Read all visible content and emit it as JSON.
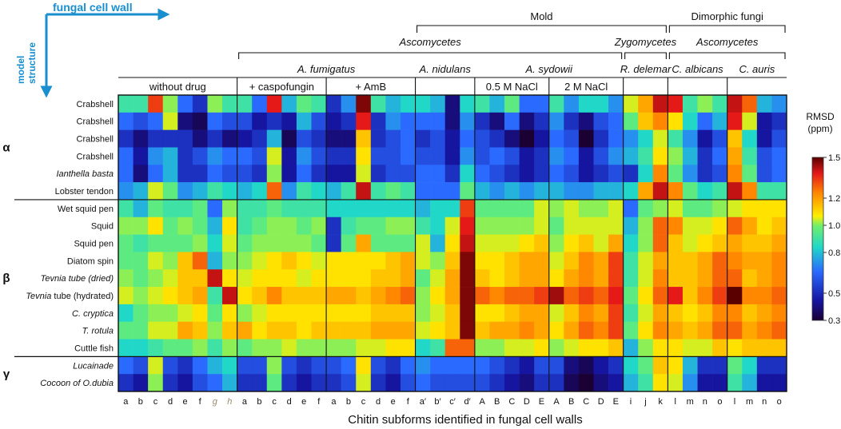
{
  "chart_data": {
    "type": "heatmap",
    "axis_title_x": "fungal cell wall",
    "axis_title_y": [
      "model",
      "structure"
    ],
    "xlabel": "Chitin subforms identified in fungal cell walls",
    "colorbar": {
      "title": "RMSD",
      "unit": "(ppm)",
      "min": 0.3,
      "max": 1.5,
      "ticks": [
        "1.5",
        "1.2",
        "1.0",
        "0.8",
        "0.5",
        "0.3"
      ]
    },
    "header_level1": [
      {
        "text": "Mold",
        "italic": false,
        "start": 0,
        "end": 45
      },
      {
        "text": "Dimorphic fungi",
        "italic": false,
        "start": 46,
        "end": 53
      }
    ],
    "header_level2": [
      {
        "text": "Ascomycetes",
        "italic": true,
        "start": 0,
        "end": 42
      },
      {
        "text": "Zygomycetes",
        "italic": true,
        "start": 43,
        "end": 45
      },
      {
        "text": "Ascomycetes",
        "italic": true,
        "start": 46,
        "end": 53
      }
    ],
    "header_level3": [
      {
        "text": "A. fumigatus",
        "italic": true,
        "start": 0,
        "end": 23
      },
      {
        "text": "A. nidulans",
        "italic": true,
        "start": 24,
        "end": 27
      },
      {
        "text": "A. sydowii",
        "italic": true,
        "start": 28,
        "end": 37
      },
      {
        "text": "R. delemar",
        "italic": true,
        "start": 43,
        "end": 45
      },
      {
        "text": "C. albicans",
        "italic": true,
        "start": 46,
        "end": 49
      },
      {
        "text": "C. auris",
        "italic": true,
        "start": 50,
        "end": 53
      }
    ],
    "conditions": [
      {
        "text": "without drug",
        "start": 0,
        "end": 7
      },
      {
        "text": "+ caspofungin",
        "start": 8,
        "end": 13
      },
      {
        "text": "+ AmB",
        "start": 14,
        "end": 19
      },
      {
        "text": "0.5 M NaCl",
        "start": 24,
        "end": 28
      },
      {
        "text": "2 M NaCl",
        "start": 29,
        "end": 33
      }
    ],
    "column_groups": [
      [
        0,
        7
      ],
      [
        8,
        13
      ],
      [
        14,
        19
      ],
      [
        20,
        23
      ],
      [
        24,
        28
      ],
      [
        29,
        33
      ],
      [
        34,
        36
      ],
      [
        37,
        40
      ],
      [
        41,
        44
      ]
    ],
    "columns": [
      "a",
      "b",
      "c",
      "d",
      "e",
      "f",
      "g",
      "h",
      "a",
      "b",
      "c",
      "d",
      "e",
      "f",
      "a",
      "b",
      "c",
      "d",
      "e",
      "f",
      "a′",
      "b′",
      "c′",
      "d′",
      "A",
      "B",
      "C",
      "D",
      "E",
      "A",
      "B",
      "C",
      "D",
      "E",
      "i",
      "j",
      "k",
      "l",
      "m",
      "n",
      "o",
      "l",
      "m",
      "n",
      "o"
    ],
    "column_label_colors": {
      "6": "#9a8a6a",
      "7": "#9a8a6a"
    },
    "classes": [
      {
        "symbol": "α",
        "start": 0,
        "end": 5
      },
      {
        "symbol": "β",
        "start": 6,
        "end": 14
      },
      {
        "symbol": "γ",
        "start": 15,
        "end": 16
      }
    ],
    "rows": [
      {
        "label": "Crabshell",
        "italic": "none"
      },
      {
        "label": "Crabshell",
        "italic": "none"
      },
      {
        "label": "Crabshell",
        "italic": "none"
      },
      {
        "label": "Crabshell",
        "italic": "none"
      },
      {
        "label": "Ianthella basta",
        "italic": "all"
      },
      {
        "label": "Lobster tendon",
        "italic": "none"
      },
      {
        "label": "Wet squid pen",
        "italic": "none"
      },
      {
        "label": "Squid",
        "italic": "none"
      },
      {
        "label": "Squid pen",
        "italic": "none"
      },
      {
        "label": "Diatom spin",
        "italic": "none"
      },
      {
        "label": "Tevnia tube (dried)",
        "italic": "all"
      },
      {
        "label": "Tevnia tube (hydrated)",
        "italic": "first"
      },
      {
        "label": "C. cryptica",
        "italic": "all"
      },
      {
        "label": "T. rotula",
        "italic": "all"
      },
      {
        "label": "Cuttle fish",
        "italic": "none"
      },
      {
        "label": "Lucainade",
        "italic": "all"
      },
      {
        "label": "Cocoon of O.dubia",
        "italic": "all"
      }
    ],
    "values": [
      [
        0.8,
        0.8,
        1.25,
        0.9,
        0.6,
        0.5,
        0.9,
        0.8,
        0.8,
        0.6,
        1.3,
        0.7,
        0.85,
        0.8,
        0.5,
        0.65,
        1.45,
        0.8,
        0.7,
        0.75,
        0.75,
        0.7,
        0.4,
        0.75,
        0.8,
        0.7,
        0.85,
        0.6,
        0.6,
        0.8,
        0.65,
        0.75,
        0.75,
        0.65,
        0.95,
        1.1,
        1.35,
        1.3,
        0.8,
        0.9,
        0.8,
        1.35,
        1.2,
        0.7,
        0.65
      ],
      [
        0.6,
        0.55,
        0.6,
        0.95,
        0.4,
        0.35,
        0.6,
        0.55,
        0.55,
        0.45,
        0.5,
        0.45,
        0.7,
        0.55,
        0.45,
        0.5,
        1.3,
        0.5,
        0.65,
        0.6,
        0.6,
        0.6,
        0.4,
        0.65,
        0.5,
        0.4,
        0.6,
        0.4,
        0.5,
        0.65,
        0.5,
        0.4,
        0.55,
        0.6,
        0.85,
        1.05,
        1.15,
        1.0,
        0.75,
        0.6,
        0.7,
        1.3,
        0.95,
        0.45,
        0.5
      ],
      [
        0.5,
        0.4,
        0.5,
        0.5,
        0.5,
        0.4,
        0.5,
        0.4,
        0.45,
        0.5,
        0.7,
        0.35,
        0.55,
        0.5,
        0.4,
        0.4,
        1.05,
        0.5,
        0.55,
        0.6,
        0.5,
        0.55,
        0.45,
        0.6,
        0.55,
        0.5,
        0.4,
        0.3,
        0.45,
        0.6,
        0.55,
        0.3,
        0.5,
        0.6,
        0.65,
        0.75,
        0.95,
        0.8,
        0.65,
        0.45,
        0.55,
        1.05,
        0.75,
        0.45,
        0.55
      ],
      [
        0.6,
        0.45,
        0.65,
        0.7,
        0.5,
        0.55,
        0.65,
        0.6,
        0.6,
        0.55,
        0.95,
        0.45,
        0.65,
        0.55,
        0.5,
        0.5,
        1.0,
        0.55,
        0.55,
        0.6,
        0.55,
        0.55,
        0.45,
        0.65,
        0.55,
        0.6,
        0.55,
        0.45,
        0.5,
        0.65,
        0.6,
        0.45,
        0.55,
        0.65,
        0.7,
        0.8,
        1.0,
        0.9,
        0.7,
        0.5,
        0.6,
        1.1,
        0.8,
        0.55,
        0.6
      ],
      [
        0.6,
        0.4,
        0.6,
        0.7,
        0.5,
        0.5,
        0.6,
        0.55,
        0.55,
        0.5,
        0.9,
        0.45,
        0.6,
        0.5,
        0.45,
        0.45,
        0.95,
        0.5,
        0.55,
        0.55,
        0.6,
        0.6,
        0.5,
        0.75,
        0.6,
        0.55,
        0.5,
        0.45,
        0.5,
        0.6,
        0.55,
        0.45,
        0.5,
        0.55,
        0.5,
        0.75,
        1.15,
        0.85,
        0.65,
        0.5,
        0.55,
        1.15,
        0.85,
        0.55,
        0.6
      ],
      [
        0.65,
        0.7,
        0.95,
        0.85,
        0.65,
        0.7,
        0.8,
        0.75,
        0.7,
        0.75,
        1.2,
        0.65,
        0.8,
        0.75,
        0.7,
        0.8,
        1.35,
        0.8,
        0.85,
        0.8,
        0.6,
        0.6,
        0.6,
        0.85,
        0.7,
        0.65,
        0.7,
        0.65,
        0.7,
        0.7,
        0.65,
        0.65,
        0.7,
        0.7,
        0.75,
        1.1,
        1.35,
        1.15,
        0.85,
        0.75,
        0.8,
        1.35,
        1.15,
        0.8,
        0.8
      ],
      [
        0.8,
        0.7,
        0.85,
        0.8,
        0.8,
        0.85,
        0.6,
        0.9,
        0.8,
        0.8,
        0.85,
        0.8,
        0.8,
        0.8,
        0.75,
        0.75,
        0.75,
        0.75,
        0.75,
        0.75,
        0.7,
        0.75,
        0.75,
        1.25,
        0.85,
        0.85,
        0.85,
        0.85,
        0.95,
        0.9,
        0.95,
        0.9,
        0.9,
        0.95,
        0.6,
        0.85,
        0.9,
        0.95,
        0.85,
        0.85,
        0.9,
        0.95,
        1.0,
        1.0,
        1.0
      ],
      [
        0.9,
        0.9,
        1.0,
        0.85,
        0.9,
        0.85,
        0.7,
        1.0,
        0.8,
        0.85,
        0.9,
        0.9,
        0.85,
        0.9,
        0.5,
        0.8,
        0.85,
        0.85,
        0.9,
        0.9,
        0.8,
        0.75,
        0.95,
        1.3,
        0.9,
        0.9,
        0.9,
        0.9,
        0.95,
        0.85,
        0.95,
        0.95,
        0.95,
        0.95,
        0.7,
        0.9,
        1.2,
        1.15,
        0.95,
        0.95,
        1.0,
        1.2,
        1.1,
        1.0,
        1.05
      ],
      [
        0.85,
        0.8,
        0.85,
        0.85,
        0.85,
        0.9,
        0.75,
        0.95,
        0.85,
        0.9,
        0.9,
        0.9,
        0.9,
        0.85,
        0.5,
        0.85,
        1.1,
        0.85,
        0.85,
        0.85,
        0.95,
        0.7,
        1.0,
        1.35,
        0.95,
        0.95,
        0.95,
        1.0,
        1.05,
        0.9,
        1.0,
        1.05,
        0.95,
        1.1,
        0.75,
        0.9,
        1.2,
        1.05,
        0.95,
        1.0,
        1.05,
        1.1,
        1.05,
        1.05,
        1.1
      ],
      [
        0.85,
        0.85,
        0.95,
        0.9,
        1.05,
        1.2,
        0.7,
        0.9,
        0.9,
        0.95,
        1.0,
        1.05,
        1.0,
        0.95,
        1.0,
        1.0,
        1.0,
        1.0,
        1.05,
        1.1,
        0.95,
        0.9,
        1.05,
        1.45,
        1.0,
        1.0,
        1.05,
        1.1,
        1.1,
        0.95,
        1.05,
        1.15,
        1.1,
        1.25,
        0.8,
        0.95,
        1.1,
        1.05,
        1.05,
        1.1,
        1.2,
        1.15,
        1.1,
        1.1,
        1.15
      ],
      [
        0.9,
        0.85,
        0.9,
        0.95,
        1.05,
        1.05,
        1.35,
        1.0,
        0.95,
        1.0,
        1.0,
        1.0,
        0.95,
        1.0,
        1.0,
        1.0,
        1.0,
        1.05,
        1.05,
        1.1,
        0.85,
        0.95,
        1.1,
        1.45,
        1.05,
        1.0,
        1.05,
        1.1,
        1.1,
        1.0,
        1.1,
        1.15,
        1.1,
        1.25,
        0.8,
        0.95,
        1.15,
        1.05,
        1.05,
        1.1,
        1.2,
        1.2,
        1.05,
        1.1,
        1.15
      ],
      [
        0.95,
        0.9,
        0.95,
        1.0,
        1.05,
        1.1,
        0.8,
        1.35,
        1.0,
        1.05,
        1.15,
        1.05,
        1.05,
        1.05,
        1.1,
        1.1,
        1.05,
        1.1,
        1.15,
        1.2,
        0.9,
        1.0,
        1.1,
        1.45,
        1.2,
        1.15,
        1.2,
        1.2,
        1.25,
        1.4,
        1.2,
        1.25,
        1.2,
        1.3,
        0.85,
        1.0,
        1.2,
        1.3,
        1.05,
        1.15,
        1.25,
        1.5,
        1.15,
        1.15,
        1.2
      ],
      [
        0.75,
        0.85,
        0.9,
        0.9,
        0.95,
        1.0,
        0.85,
        1.0,
        0.9,
        0.95,
        1.0,
        1.0,
        1.0,
        1.0,
        1.0,
        1.0,
        1.0,
        1.05,
        1.05,
        1.05,
        0.9,
        0.95,
        1.05,
        1.45,
        1.0,
        1.0,
        1.05,
        1.1,
        1.1,
        0.95,
        1.05,
        1.15,
        1.1,
        1.25,
        0.8,
        0.95,
        1.1,
        1.05,
        1.0,
        1.05,
        1.15,
        1.15,
        1.05,
        1.1,
        1.15
      ],
      [
        0.85,
        0.85,
        0.95,
        0.95,
        1.1,
        1.05,
        0.9,
        1.05,
        1.1,
        1.0,
        1.05,
        1.05,
        1.0,
        1.05,
        1.05,
        1.05,
        1.05,
        1.1,
        1.1,
        1.1,
        0.95,
        1.0,
        1.05,
        1.45,
        1.05,
        1.1,
        1.1,
        1.15,
        1.1,
        1.0,
        1.1,
        1.2,
        1.15,
        1.25,
        0.85,
        1.0,
        1.15,
        1.1,
        1.05,
        1.1,
        1.2,
        1.2,
        1.1,
        1.15,
        1.2
      ],
      [
        0.75,
        0.75,
        0.8,
        0.85,
        0.85,
        0.9,
        0.8,
        0.9,
        0.85,
        0.9,
        0.9,
        0.95,
        0.9,
        0.9,
        0.9,
        0.9,
        0.95,
        0.95,
        1.0,
        1.0,
        0.75,
        0.8,
        1.2,
        1.2,
        0.9,
        0.9,
        0.95,
        0.95,
        1.0,
        0.9,
        0.95,
        1.0,
        1.0,
        1.05,
        0.7,
        0.9,
        1.0,
        1.0,
        0.95,
        0.95,
        1.05,
        1.0,
        1.05,
        1.05,
        1.05
      ],
      [
        0.6,
        0.55,
        0.95,
        0.55,
        0.5,
        0.6,
        0.7,
        0.75,
        0.55,
        0.55,
        0.9,
        0.55,
        0.5,
        0.55,
        0.55,
        0.6,
        1.0,
        0.55,
        0.5,
        0.6,
        0.65,
        0.6,
        0.6,
        0.6,
        0.6,
        0.55,
        0.5,
        0.45,
        0.55,
        0.55,
        0.4,
        0.35,
        0.45,
        0.5,
        0.75,
        0.85,
        1.05,
        1.0,
        0.7,
        0.5,
        0.5,
        0.85,
        0.75,
        0.5,
        0.5
      ],
      [
        0.5,
        0.45,
        0.9,
        0.5,
        0.45,
        0.55,
        0.6,
        0.7,
        0.5,
        0.5,
        0.85,
        0.5,
        0.45,
        0.5,
        0.5,
        0.55,
        0.95,
        0.5,
        0.45,
        0.55,
        0.6,
        0.55,
        0.55,
        0.55,
        0.55,
        0.5,
        0.45,
        0.4,
        0.5,
        0.5,
        0.35,
        0.3,
        0.4,
        0.45,
        0.7,
        0.8,
        1.0,
        0.95,
        0.65,
        0.45,
        0.45,
        0.8,
        0.7,
        0.45,
        0.45
      ]
    ]
  }
}
